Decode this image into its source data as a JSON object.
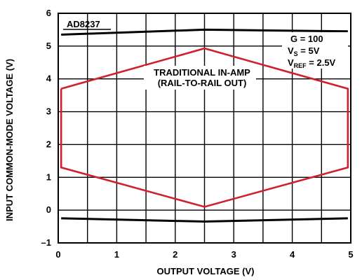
{
  "chart_data": {
    "type": "line",
    "title": "",
    "xlabel": "OUTPUT VOLTAGE (V)",
    "ylabel": "INPUT COMMON-MODE VOLTAGE (V)",
    "xlim": [
      0,
      5
    ],
    "ylim": [
      -1,
      6
    ],
    "xticks": [
      0,
      1,
      2,
      3,
      4,
      5
    ],
    "yticks": [
      -1,
      0,
      1,
      2,
      3,
      4,
      5,
      6
    ],
    "x_tick_labels": [
      "0",
      "1",
      "2",
      "3",
      "4",
      "5"
    ],
    "y_tick_labels": [
      "–1",
      "0",
      "1",
      "2",
      "3",
      "4",
      "5",
      "6"
    ],
    "minor_x_step": 0.5,
    "grid": true,
    "series": [
      {
        "name": "AD8237",
        "color": "#000000",
        "segments": [
          {
            "x": [
              0.05,
              2.5,
              4.95
            ],
            "y": [
              5.35,
              5.5,
              5.45
            ]
          },
          {
            "x": [
              0.05,
              2.5,
              4.95
            ],
            "y": [
              -0.25,
              -0.35,
              -0.25
            ]
          }
        ]
      },
      {
        "name": "TRADITIONAL IN-AMP (RAIL-TO-RAIL OUT)",
        "color": "#d0202e",
        "segments": [
          {
            "x": [
              0.05,
              2.5,
              4.95,
              4.95,
              2.5,
              0.05,
              0.05
            ],
            "y": [
              3.7,
              4.93,
              3.7,
              1.3,
              0.1,
              1.3,
              3.7
            ]
          }
        ]
      }
    ],
    "annotations": {
      "box_label": "AD8237",
      "hex_label_line1": "TRADITIONAL IN-AMP",
      "hex_label_line2": "(RAIL-TO-RAIL OUT)",
      "cond_g": "G = 100",
      "cond_vs_main": "V",
      "cond_vs_sub": "S",
      "cond_vs_val": " = 5V",
      "cond_vref_main": "V",
      "cond_vref_sub": "REF",
      "cond_vref_val": " = 2.5V"
    }
  }
}
